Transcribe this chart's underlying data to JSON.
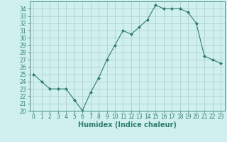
{
  "x": [
    0,
    1,
    2,
    3,
    4,
    5,
    6,
    7,
    8,
    9,
    10,
    11,
    12,
    13,
    14,
    15,
    16,
    17,
    18,
    19,
    20,
    21,
    22,
    23
  ],
  "y": [
    25,
    24,
    23,
    23,
    23,
    21.5,
    20,
    22.5,
    24.5,
    27,
    29,
    31,
    30.5,
    31.5,
    32.5,
    34.5,
    34,
    34,
    34,
    33.5,
    32,
    27.5,
    27,
    26.5
  ],
  "xlabel": "Humidex (Indice chaleur)",
  "ylim": [
    20,
    35
  ],
  "xlim": [
    -0.5,
    23.5
  ],
  "yticks": [
    20,
    21,
    22,
    23,
    24,
    25,
    26,
    27,
    28,
    29,
    30,
    31,
    32,
    33,
    34
  ],
  "xticks": [
    0,
    1,
    2,
    3,
    4,
    5,
    6,
    7,
    8,
    9,
    10,
    11,
    12,
    13,
    14,
    15,
    16,
    17,
    18,
    19,
    20,
    21,
    22,
    23
  ],
  "line_color": "#2e7d6e",
  "marker": "D",
  "marker_size": 2,
  "bg_color": "#cff0ee",
  "grid_color": "#aaccca",
  "tick_fontsize": 5.5,
  "xlabel_fontsize": 7
}
